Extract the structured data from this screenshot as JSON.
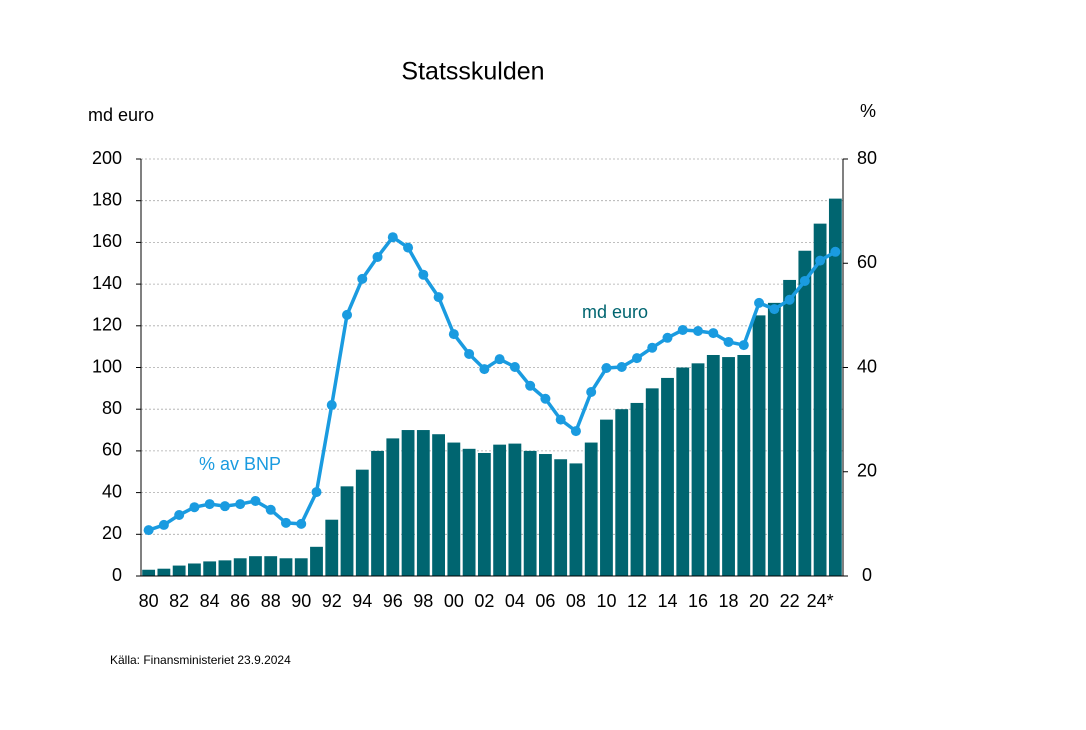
{
  "chart_data": {
    "type": "bar-line",
    "title": "Statsskulden",
    "y_label": "md euro",
    "y2_label": "%",
    "source": "Källa: Finansministeriet 23.9.2024",
    "annotations": [
      "md euro",
      "% av BNP"
    ],
    "categories": [
      "80",
      null,
      "82",
      null,
      "84",
      null,
      "86",
      null,
      "88",
      null,
      "90",
      null,
      "92",
      null,
      "94",
      null,
      "96",
      null,
      "98",
      null,
      "00",
      null,
      "02",
      null,
      "04",
      null,
      "06",
      null,
      "08",
      null,
      "10",
      null,
      "12",
      null,
      "14",
      null,
      "16",
      null,
      "18",
      null,
      "20",
      null,
      "22",
      null,
      "24*",
      null
    ],
    "series": [
      {
        "name": "md euro",
        "type": "bar",
        "color": "#006570",
        "values": [
          3,
          3.5,
          5,
          6,
          7,
          7.5,
          8.5,
          9.5,
          9.5,
          8.5,
          8.5,
          14,
          27,
          43,
          51,
          60,
          66,
          70,
          70,
          68,
          64,
          61,
          59,
          63,
          63.5,
          60,
          58.5,
          56,
          54,
          64,
          75,
          80,
          83,
          90,
          95,
          100,
          102,
          106,
          105,
          106,
          125,
          131,
          142,
          156,
          169,
          181
        ]
      },
      {
        "name": "% av BNP",
        "type": "line",
        "axis": "y2",
        "color": "#1a9be0",
        "values": [
          8.8,
          9.8,
          11.7,
          13.2,
          13.8,
          13.4,
          13.8,
          14.4,
          12.7,
          10.2,
          10,
          16.1,
          32.8,
          50.1,
          57,
          61.2,
          65,
          63,
          57.8,
          53.5,
          46.4,
          42.6,
          39.7,
          41.6,
          40.1,
          36.5,
          34,
          30,
          27.8,
          35.3,
          39.9,
          40.1,
          41.8,
          43.8,
          45.7,
          47.2,
          47,
          46.6,
          44.9,
          44.3,
          52.4,
          51.2,
          53,
          56.6,
          60.5,
          62.2
        ]
      }
    ],
    "ylim": [
      0,
      200
    ],
    "yticks": [
      0,
      20,
      40,
      60,
      80,
      100,
      120,
      140,
      160,
      180,
      200
    ],
    "y2lim": [
      0,
      80
    ],
    "y2ticks": [
      0,
      20,
      40,
      60,
      80
    ],
    "grid": true
  }
}
